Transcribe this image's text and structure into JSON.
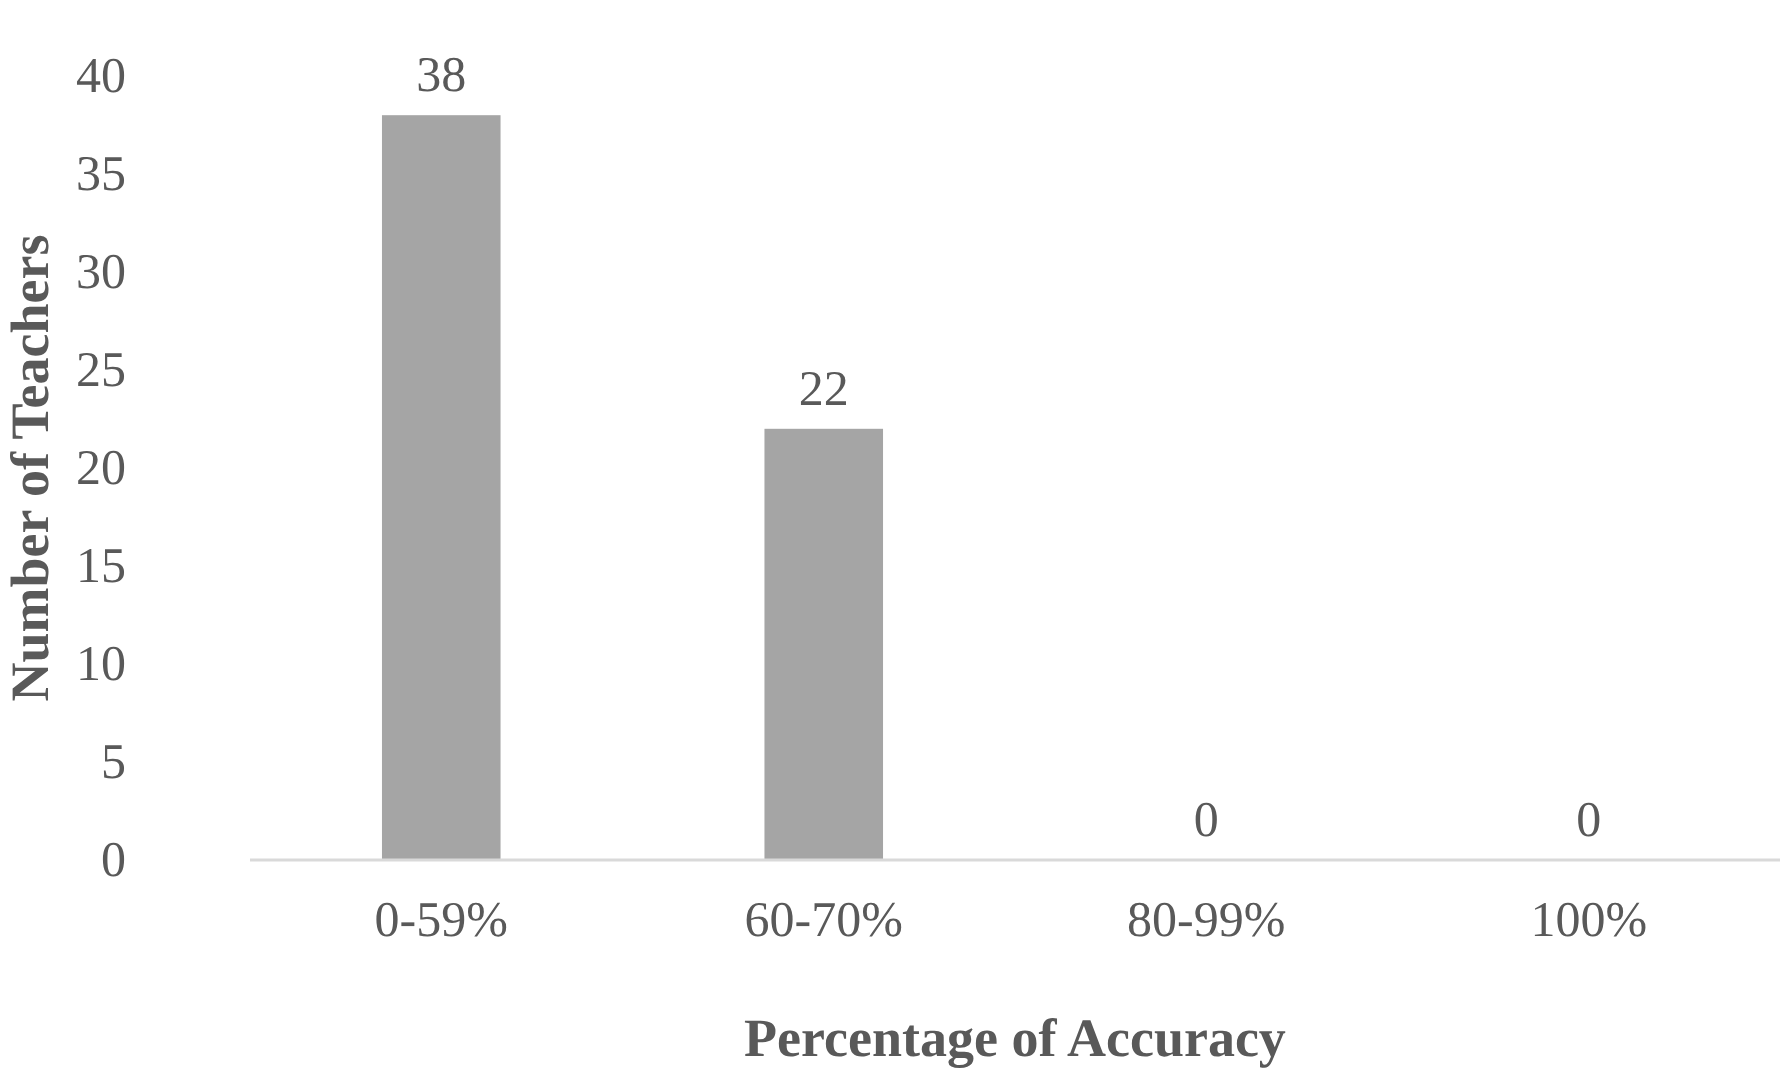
{
  "chart_data": {
    "type": "bar",
    "xlabel": "Percentage of Accuracy",
    "ylabel": "Number of Teachers",
    "categories": [
      "0-59%",
      "60-70%",
      "80-99%",
      "100%"
    ],
    "values": [
      38,
      22,
      0,
      0
    ],
    "color": "#a5a5a5",
    "ylim": [
      0,
      40
    ],
    "yticks": [
      0,
      5,
      10,
      15,
      20,
      25,
      30,
      35,
      40
    ],
    "grid": false,
    "data_labels": true
  }
}
